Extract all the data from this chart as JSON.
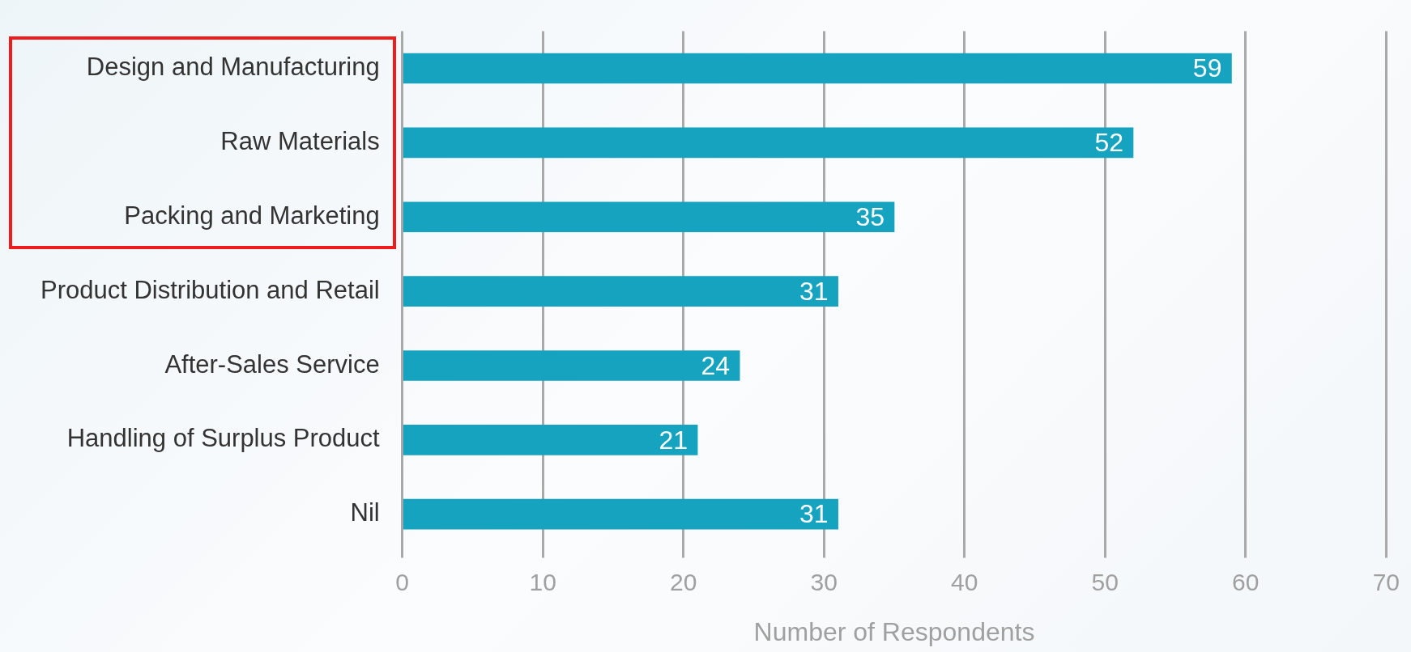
{
  "chart_data": {
    "type": "bar",
    "orientation": "horizontal",
    "xlabel": "Number of Respondents",
    "categories": [
      "Design and Manufacturing",
      "Raw Materials",
      "Packing and Marketing",
      "Product Distribution and Retail",
      "After-Sales Service",
      "Handling of Surplus Product",
      "Nil"
    ],
    "values": [
      59,
      52,
      35,
      31,
      24,
      21,
      31
    ],
    "color": "#15a3c0",
    "xlim": [
      0,
      70
    ],
    "xticks": [
      0,
      10,
      20,
      30,
      40,
      50,
      60,
      70
    ],
    "grid": "x",
    "data_labels": true,
    "legend": false
  }
}
